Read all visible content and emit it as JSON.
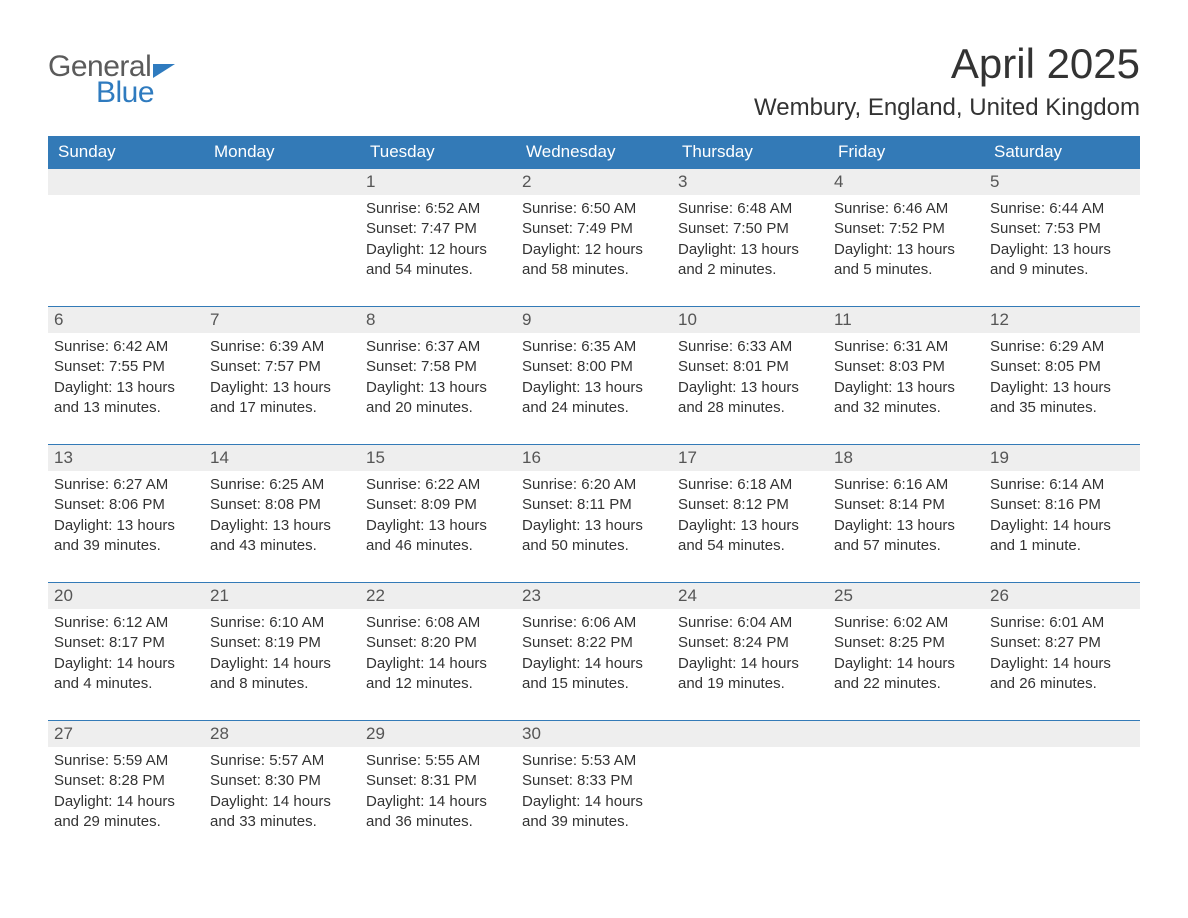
{
  "brand": {
    "word1": "General",
    "word2": "Blue"
  },
  "title": "April 2025",
  "location": "Wembury, England, United Kingdom",
  "colors": {
    "header_bg": "#337ab7",
    "header_text": "#ffffff",
    "daynum_bg": "#eeeeee",
    "text": "#333333",
    "brand_gray": "#5b5b5b",
    "brand_blue": "#2f7bbf"
  },
  "weekdays": [
    "Sunday",
    "Monday",
    "Tuesday",
    "Wednesday",
    "Thursday",
    "Friday",
    "Saturday"
  ],
  "weeks": [
    [
      null,
      null,
      {
        "d": "1",
        "sr": "6:52 AM",
        "ss": "7:47 PM",
        "dl": "12 hours and 54 minutes."
      },
      {
        "d": "2",
        "sr": "6:50 AM",
        "ss": "7:49 PM",
        "dl": "12 hours and 58 minutes."
      },
      {
        "d": "3",
        "sr": "6:48 AM",
        "ss": "7:50 PM",
        "dl": "13 hours and 2 minutes."
      },
      {
        "d": "4",
        "sr": "6:46 AM",
        "ss": "7:52 PM",
        "dl": "13 hours and 5 minutes."
      },
      {
        "d": "5",
        "sr": "6:44 AM",
        "ss": "7:53 PM",
        "dl": "13 hours and 9 minutes."
      }
    ],
    [
      {
        "d": "6",
        "sr": "6:42 AM",
        "ss": "7:55 PM",
        "dl": "13 hours and 13 minutes."
      },
      {
        "d": "7",
        "sr": "6:39 AM",
        "ss": "7:57 PM",
        "dl": "13 hours and 17 minutes."
      },
      {
        "d": "8",
        "sr": "6:37 AM",
        "ss": "7:58 PM",
        "dl": "13 hours and 20 minutes."
      },
      {
        "d": "9",
        "sr": "6:35 AM",
        "ss": "8:00 PM",
        "dl": "13 hours and 24 minutes."
      },
      {
        "d": "10",
        "sr": "6:33 AM",
        "ss": "8:01 PM",
        "dl": "13 hours and 28 minutes."
      },
      {
        "d": "11",
        "sr": "6:31 AM",
        "ss": "8:03 PM",
        "dl": "13 hours and 32 minutes."
      },
      {
        "d": "12",
        "sr": "6:29 AM",
        "ss": "8:05 PM",
        "dl": "13 hours and 35 minutes."
      }
    ],
    [
      {
        "d": "13",
        "sr": "6:27 AM",
        "ss": "8:06 PM",
        "dl": "13 hours and 39 minutes."
      },
      {
        "d": "14",
        "sr": "6:25 AM",
        "ss": "8:08 PM",
        "dl": "13 hours and 43 minutes."
      },
      {
        "d": "15",
        "sr": "6:22 AM",
        "ss": "8:09 PM",
        "dl": "13 hours and 46 minutes."
      },
      {
        "d": "16",
        "sr": "6:20 AM",
        "ss": "8:11 PM",
        "dl": "13 hours and 50 minutes."
      },
      {
        "d": "17",
        "sr": "6:18 AM",
        "ss": "8:12 PM",
        "dl": "13 hours and 54 minutes."
      },
      {
        "d": "18",
        "sr": "6:16 AM",
        "ss": "8:14 PM",
        "dl": "13 hours and 57 minutes."
      },
      {
        "d": "19",
        "sr": "6:14 AM",
        "ss": "8:16 PM",
        "dl": "14 hours and 1 minute."
      }
    ],
    [
      {
        "d": "20",
        "sr": "6:12 AM",
        "ss": "8:17 PM",
        "dl": "14 hours and 4 minutes."
      },
      {
        "d": "21",
        "sr": "6:10 AM",
        "ss": "8:19 PM",
        "dl": "14 hours and 8 minutes."
      },
      {
        "d": "22",
        "sr": "6:08 AM",
        "ss": "8:20 PM",
        "dl": "14 hours and 12 minutes."
      },
      {
        "d": "23",
        "sr": "6:06 AM",
        "ss": "8:22 PM",
        "dl": "14 hours and 15 minutes."
      },
      {
        "d": "24",
        "sr": "6:04 AM",
        "ss": "8:24 PM",
        "dl": "14 hours and 19 minutes."
      },
      {
        "d": "25",
        "sr": "6:02 AM",
        "ss": "8:25 PM",
        "dl": "14 hours and 22 minutes."
      },
      {
        "d": "26",
        "sr": "6:01 AM",
        "ss": "8:27 PM",
        "dl": "14 hours and 26 minutes."
      }
    ],
    [
      {
        "d": "27",
        "sr": "5:59 AM",
        "ss": "8:28 PM",
        "dl": "14 hours and 29 minutes."
      },
      {
        "d": "28",
        "sr": "5:57 AM",
        "ss": "8:30 PM",
        "dl": "14 hours and 33 minutes."
      },
      {
        "d": "29",
        "sr": "5:55 AM",
        "ss": "8:31 PM",
        "dl": "14 hours and 36 minutes."
      },
      {
        "d": "30",
        "sr": "5:53 AM",
        "ss": "8:33 PM",
        "dl": "14 hours and 39 minutes."
      },
      null,
      null,
      null
    ]
  ],
  "labels": {
    "sunrise": "Sunrise: ",
    "sunset": "Sunset: ",
    "daylight": "Daylight: "
  }
}
